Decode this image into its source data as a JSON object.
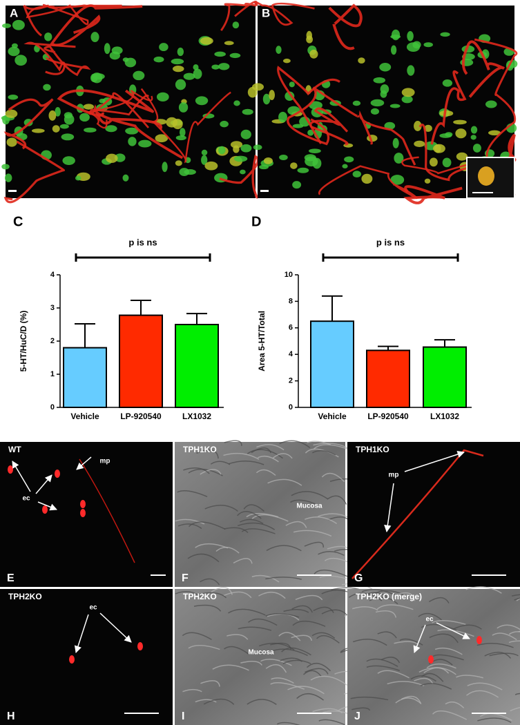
{
  "panels_top": [
    {
      "label": "A"
    },
    {
      "label": "B"
    }
  ],
  "chart_data": [
    {
      "type": "bar",
      "panel": "C",
      "annotation": "p is ns",
      "ylabel": "5-HT/HuC/D (%)",
      "categories": [
        "Vehicle",
        "LP-920540",
        "LX1032"
      ],
      "values": [
        1.8,
        2.78,
        2.5
      ],
      "errors": [
        0.72,
        0.45,
        0.33
      ],
      "colors": [
        "#66ccff",
        "#ff2a00",
        "#00ee00"
      ],
      "ylim": [
        0,
        4
      ],
      "yticks": [
        0,
        1,
        2,
        3,
        4
      ]
    },
    {
      "type": "bar",
      "panel": "D",
      "annotation": "p is ns",
      "ylabel": "Area 5-HT/Total",
      "categories": [
        "Vehicle",
        "LP-920540",
        "LX1032"
      ],
      "values": [
        6.5,
        4.3,
        4.55
      ],
      "errors": [
        1.9,
        0.3,
        0.55
      ],
      "colors": [
        "#66ccff",
        "#ff2a00",
        "#00ee00"
      ],
      "ylim": [
        0,
        10
      ],
      "yticks": [
        0,
        2,
        4,
        6,
        8,
        10
      ]
    }
  ],
  "panels_bottom": [
    {
      "label": "E",
      "title": "WT",
      "annotations": [
        "mp",
        "ec"
      ]
    },
    {
      "label": "F",
      "title": "TPH1KO",
      "annotations": [
        "Mucosa"
      ]
    },
    {
      "label": "G",
      "title": "TPH1KO",
      "annotations": [
        "mp"
      ]
    },
    {
      "label": "H",
      "title": "TPH2KO",
      "annotations": [
        "ec"
      ]
    },
    {
      "label": "I",
      "title": "TPH2KO",
      "annotations": [
        "Mucosa"
      ]
    },
    {
      "label": "J",
      "title": "TPH2KO (merge)",
      "annotations": [
        "ec"
      ]
    }
  ]
}
